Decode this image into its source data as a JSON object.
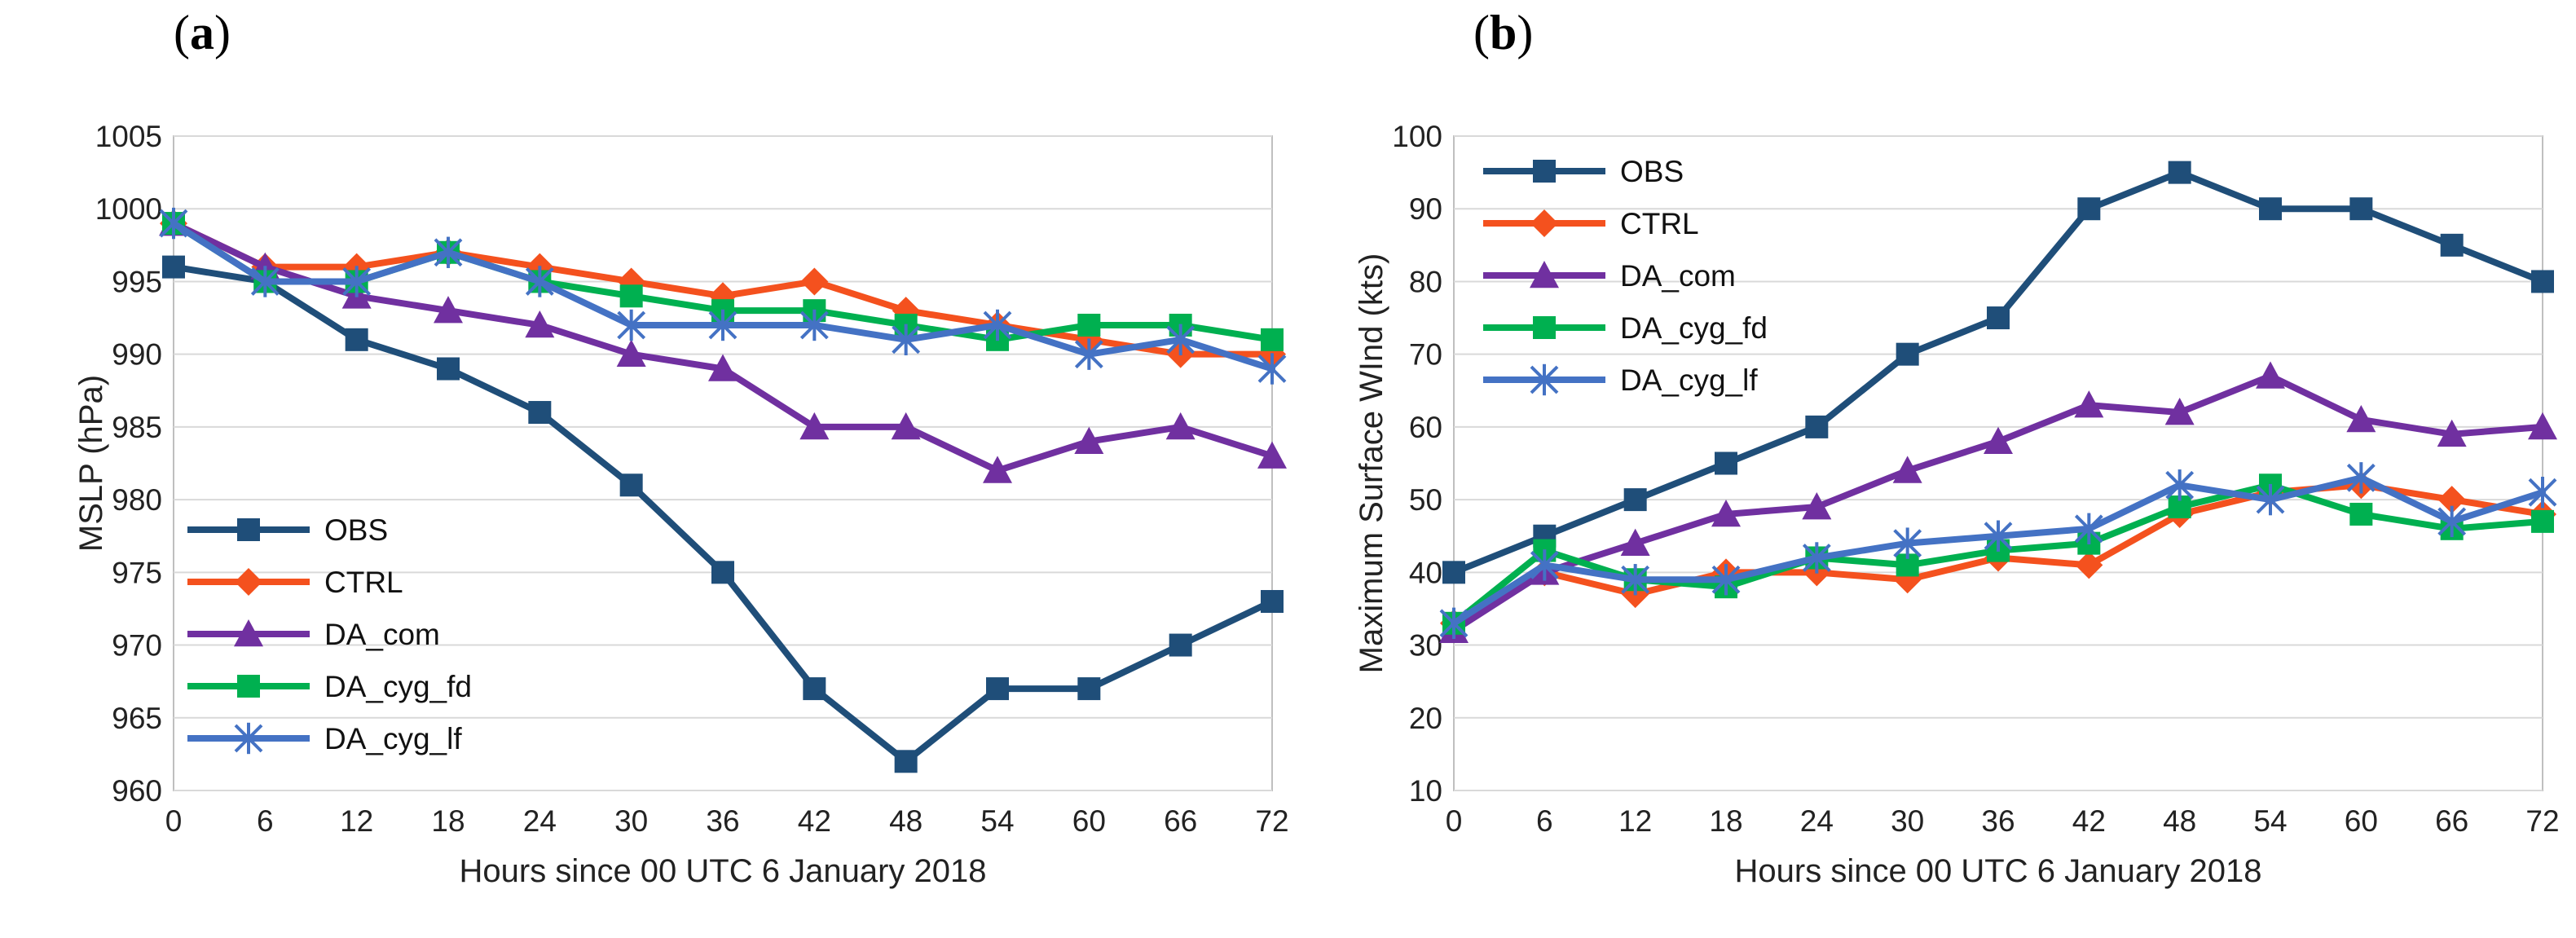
{
  "panels": {
    "a": {
      "label_open": "(",
      "label_letter": "a",
      "label_close": ")"
    },
    "b": {
      "label_open": "(",
      "label_letter": "b",
      "label_close": ")"
    }
  },
  "chart_data": [
    {
      "type": "line",
      "panel": "a",
      "xlabel": "Hours since 00 UTC 6 January 2018",
      "ylabel": "MSLP (hPa)",
      "x": [
        0,
        6,
        12,
        18,
        24,
        30,
        36,
        42,
        48,
        54,
        60,
        66,
        72
      ],
      "ylim": [
        960,
        1005
      ],
      "yticks": [
        960,
        965,
        970,
        975,
        980,
        985,
        990,
        995,
        1000,
        1005
      ],
      "legend_position": "lower-left",
      "series": [
        {
          "name": "OBS",
          "color": "#1f4e79",
          "marker": "square",
          "values": [
            996,
            995,
            991,
            989,
            986,
            981,
            975,
            967,
            962,
            967,
            967,
            970,
            973
          ]
        },
        {
          "name": "CTRL",
          "color": "#f4511e",
          "marker": "diamond",
          "values": [
            999,
            996,
            996,
            997,
            996,
            995,
            994,
            995,
            993,
            992,
            991,
            990,
            990
          ]
        },
        {
          "name": "DA_com",
          "color": "#7030a0",
          "marker": "triangle",
          "values": [
            999,
            996,
            994,
            993,
            992,
            990,
            989,
            985,
            985,
            982,
            984,
            985,
            983
          ]
        },
        {
          "name": "DA_cyg_fd",
          "color": "#00b050",
          "marker": "square",
          "values": [
            999,
            995,
            995,
            997,
            995,
            994,
            993,
            993,
            992,
            991,
            992,
            992,
            991
          ]
        },
        {
          "name": "DA_cyg_lf",
          "color": "#4472c4",
          "marker": "star",
          "values": [
            999,
            995,
            995,
            997,
            995,
            992,
            992,
            992,
            991,
            992,
            990,
            991,
            989
          ]
        }
      ]
    },
    {
      "type": "line",
      "panel": "b",
      "xlabel": "Hours since 00 UTC 6 January 2018",
      "ylabel": "Maximum Surface WInd (kts)",
      "x": [
        0,
        6,
        12,
        18,
        24,
        30,
        36,
        42,
        48,
        54,
        60,
        66,
        72
      ],
      "ylim": [
        10,
        100
      ],
      "yticks": [
        10,
        20,
        30,
        40,
        50,
        60,
        70,
        80,
        90,
        100
      ],
      "legend_position": "top-left",
      "series": [
        {
          "name": "OBS",
          "color": "#1f4e79",
          "marker": "square",
          "values": [
            40,
            45,
            50,
            55,
            60,
            70,
            75,
            90,
            95,
            90,
            90,
            85,
            80
          ]
        },
        {
          "name": "CTRL",
          "color": "#f4511e",
          "marker": "diamond",
          "values": [
            33,
            40,
            37,
            40,
            40,
            39,
            42,
            41,
            48,
            51,
            52,
            50,
            48
          ]
        },
        {
          "name": "DA_com",
          "color": "#7030a0",
          "marker": "triangle",
          "values": [
            32,
            40,
            44,
            48,
            49,
            54,
            58,
            63,
            62,
            67,
            61,
            59,
            60
          ]
        },
        {
          "name": "DA_cyg_fd",
          "color": "#00b050",
          "marker": "square",
          "values": [
            33,
            43,
            39,
            38,
            42,
            41,
            43,
            44,
            49,
            52,
            48,
            46,
            47
          ]
        },
        {
          "name": "DA_cyg_lf",
          "color": "#4472c4",
          "marker": "star",
          "values": [
            33,
            41,
            39,
            39,
            42,
            44,
            45,
            46,
            52,
            50,
            53,
            47,
            51
          ]
        }
      ]
    }
  ]
}
